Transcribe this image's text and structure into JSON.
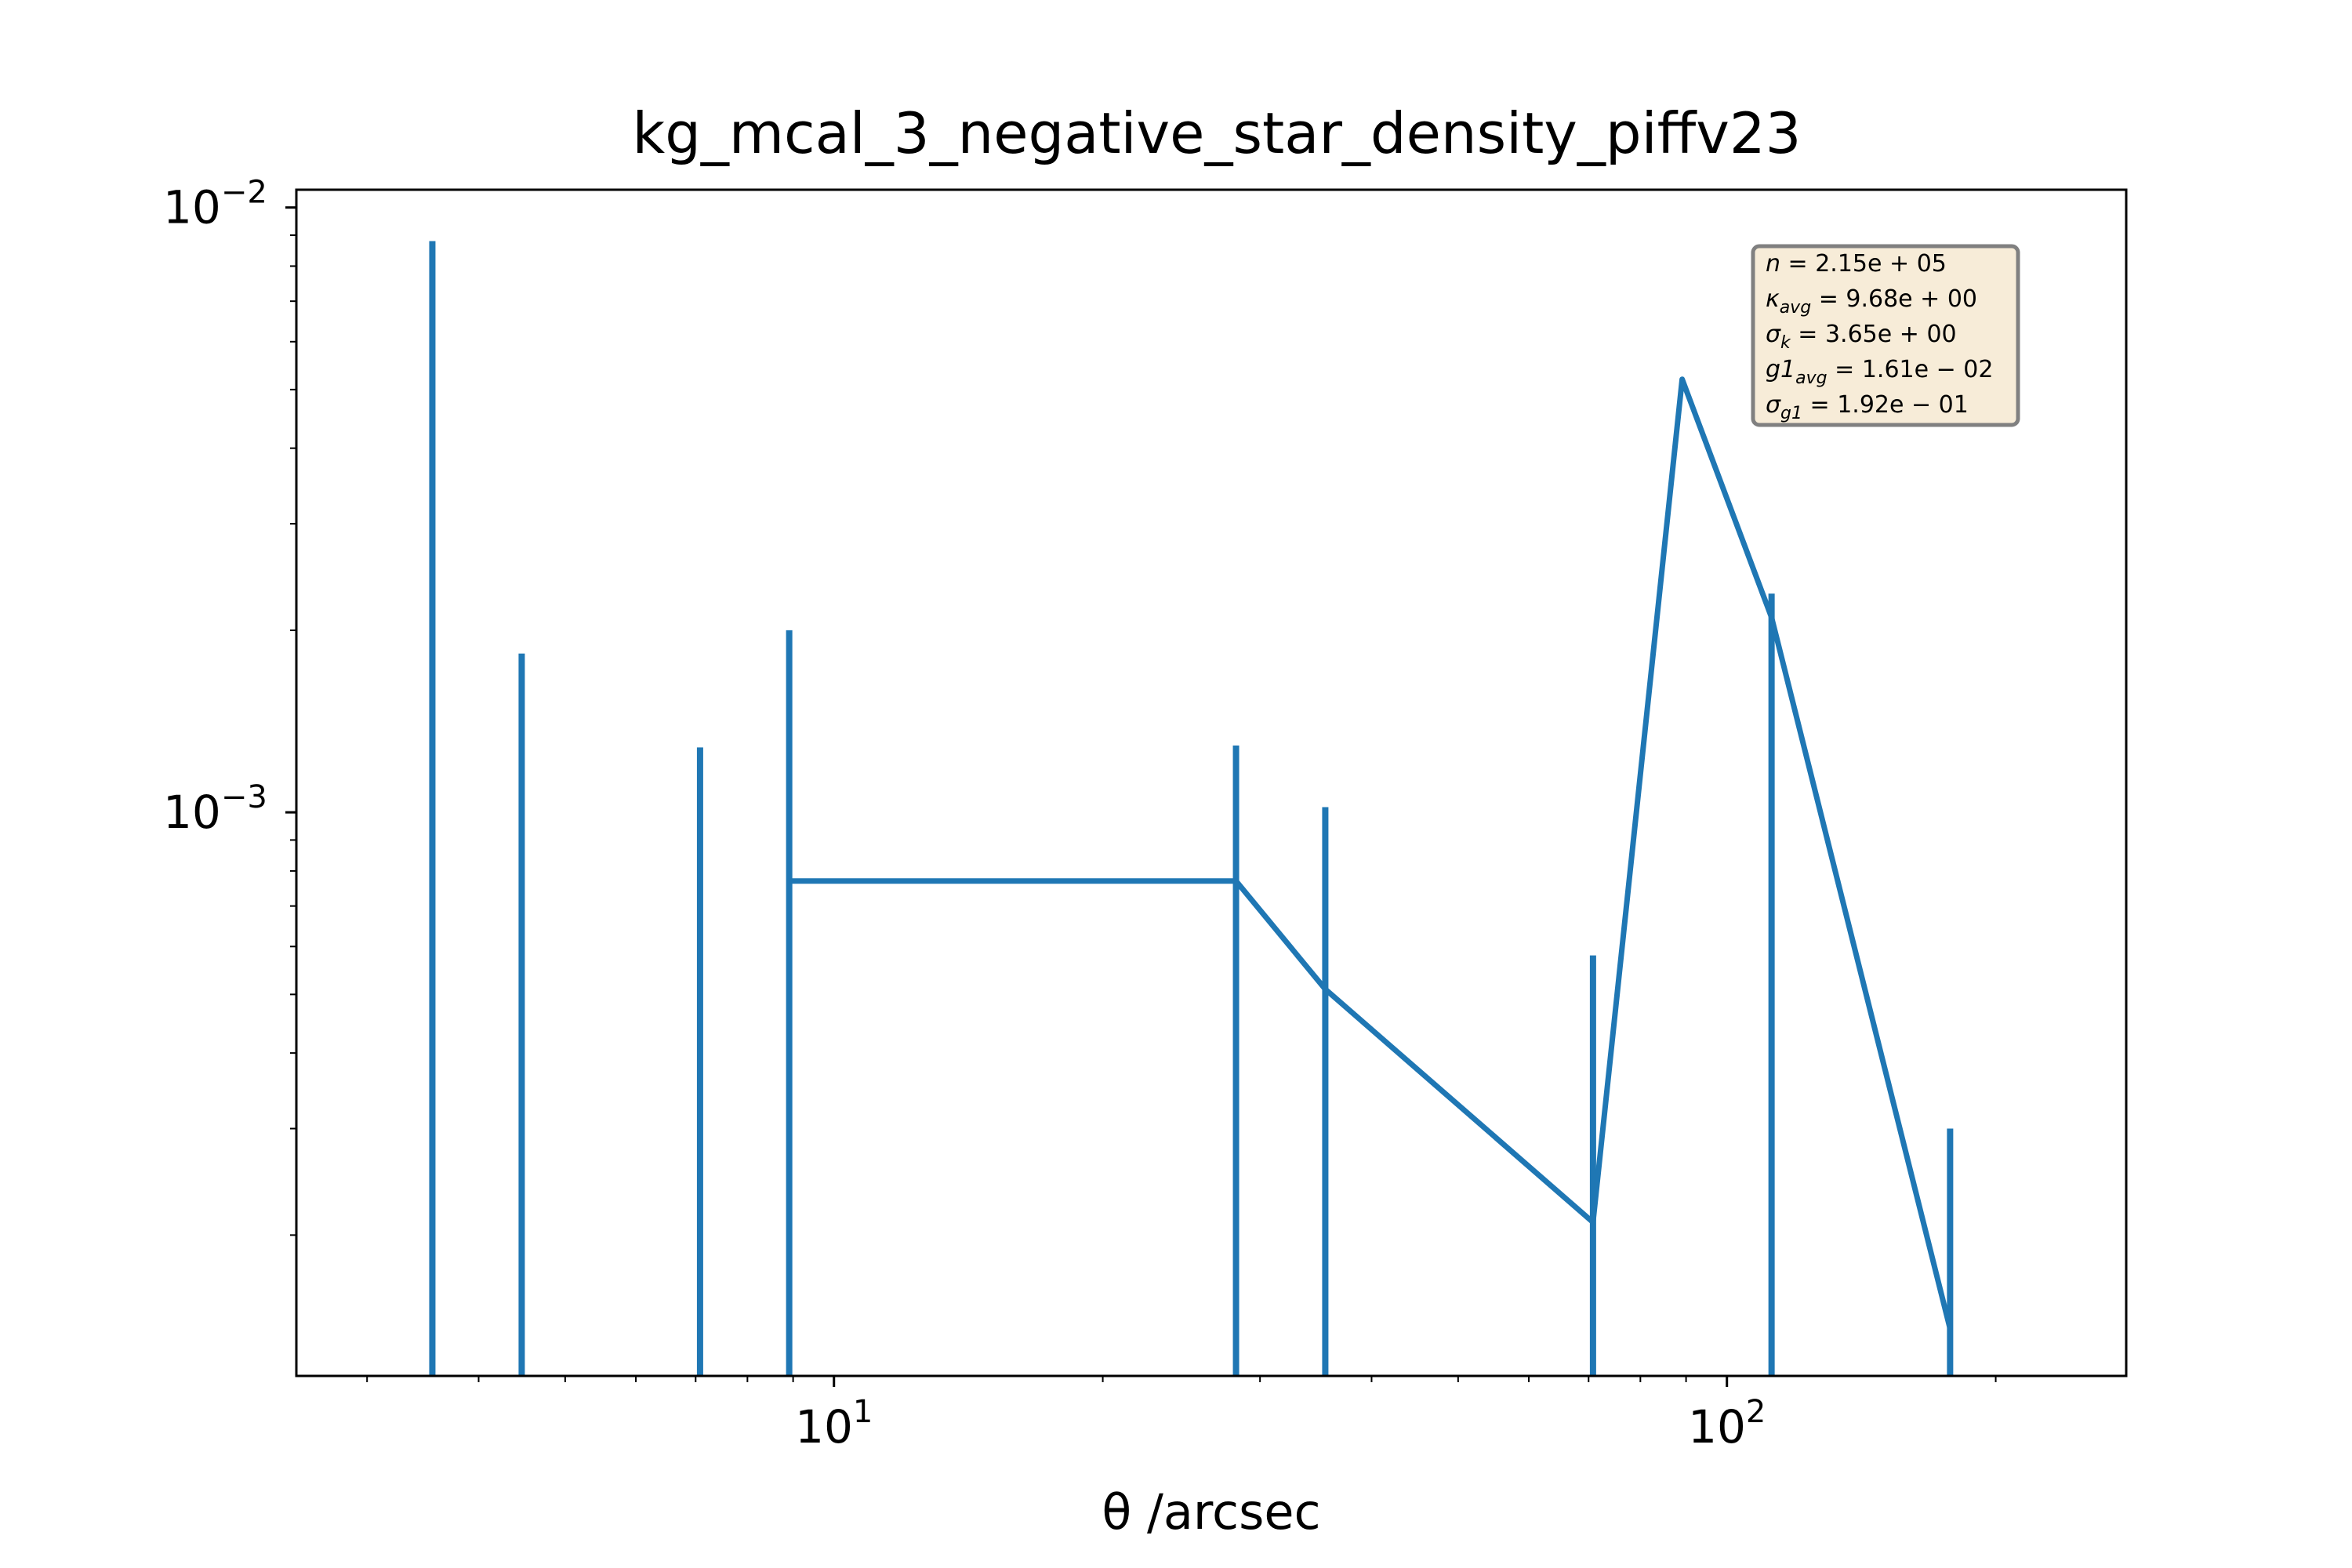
{
  "chart_data": {
    "type": "line",
    "title": "kg_mcal_3_negative_star_density_piffv23",
    "xlabel": "θ /arcsec",
    "ylabel": "",
    "xscale": "log",
    "yscale": "log",
    "xlim": [
      2.5,
      280
    ],
    "ylim": [
      0.000117,
      0.0107
    ],
    "grid": false,
    "legend": "none",
    "line_color": "#1f77b4",
    "x_ticks": [
      {
        "value": 10,
        "base": "10",
        "exp": "1"
      },
      {
        "value": 100,
        "base": "10",
        "exp": "2"
      }
    ],
    "y_ticks": [
      {
        "value": 0.001,
        "base": "10",
        "exp": "−3"
      },
      {
        "value": 0.01,
        "base": "10",
        "exp": "−2"
      }
    ],
    "series": [
      {
        "x": [
          3.55,
          4.47,
          7.08,
          8.91,
          28.2,
          35.5,
          70.8,
          89.1,
          112.2,
          177.8
        ],
        "y": [
          0.0058,
          null,
          null,
          0.00077,
          0.00077,
          0.00051,
          0.00021,
          0.0052,
          0.0021,
          0.00014
        ],
        "err_low": [
          0.000117,
          0.000117,
          0.000117,
          0.000117,
          0.000117,
          0.000117,
          0.000117,
          null,
          0.000117,
          0.000117
        ],
        "err_high": [
          0.0088,
          0.00183,
          0.00128,
          0.002,
          0.00129,
          0.00102,
          0.00058,
          0.0054,
          0.0023,
          0.0003
        ]
      }
    ],
    "stats": [
      {
        "sym": "n",
        "sub": "",
        "value": " = 2.15e + 05"
      },
      {
        "sym": "κ",
        "sub": "avg",
        "value": " = 9.68e + 00"
      },
      {
        "sym": "σ",
        "sub": "k",
        "value": " = 3.65e + 00"
      },
      {
        "sym": "g1",
        "sub": "avg",
        "value": " = 1.61e − 02"
      },
      {
        "sym": "σ",
        "sub": "g1",
        "value": " = 1.92e − 01"
      }
    ]
  }
}
